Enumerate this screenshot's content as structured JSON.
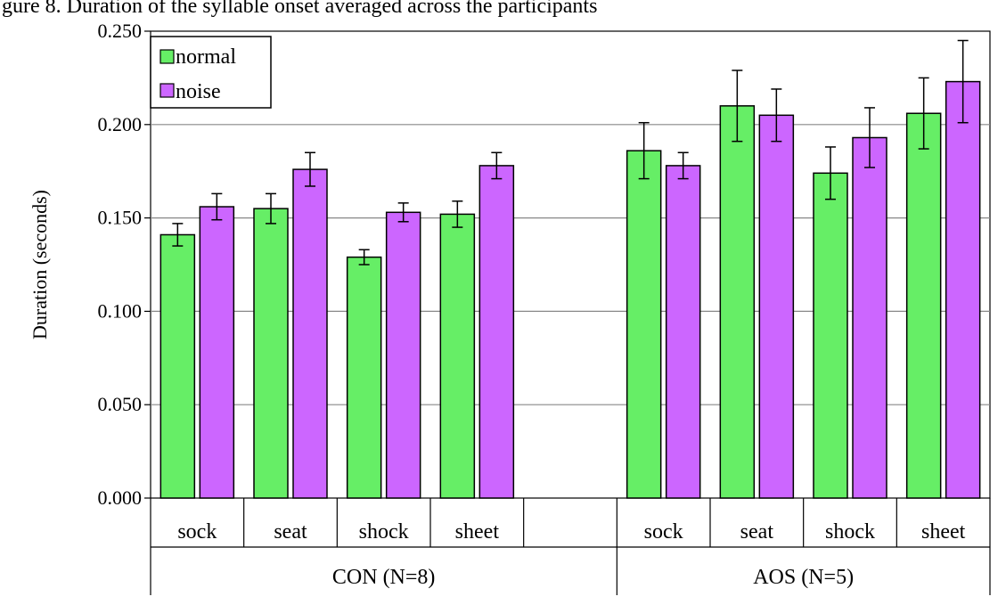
{
  "caption": "gure 8. Duration of the syllable onset averaged across the participants",
  "chart_data": {
    "type": "bar",
    "title": "",
    "xlabel": "",
    "ylabel": "Duration (seconds)",
    "ylim": [
      0,
      0.25
    ],
    "yticks": [
      "0.000",
      "0.050",
      "0.100",
      "0.150",
      "0.200",
      "0.250"
    ],
    "grid": true,
    "legend_position": "top-left",
    "groups": [
      {
        "label": "CON (N=8)",
        "categories": [
          "sock",
          "seat",
          "shock",
          "sheet",
          ""
        ]
      },
      {
        "label": "AOS (N=5)",
        "categories": [
          "sock",
          "seat",
          "shock",
          "sheet"
        ]
      }
    ],
    "series": [
      {
        "name": "normal",
        "color": "#66ee66",
        "values": [
          0.141,
          0.155,
          0.129,
          0.152,
          null,
          0.186,
          0.21,
          0.174,
          0.206
        ],
        "error": [
          0.006,
          0.008,
          0.004,
          0.007,
          null,
          0.015,
          0.019,
          0.014,
          0.019
        ]
      },
      {
        "name": "noise",
        "color": "#cc66ff",
        "values": [
          0.156,
          0.176,
          0.153,
          0.178,
          null,
          0.178,
          0.205,
          0.193,
          0.223
        ],
        "error": [
          0.007,
          0.009,
          0.005,
          0.007,
          null,
          0.007,
          0.014,
          0.016,
          0.022
        ]
      }
    ]
  }
}
